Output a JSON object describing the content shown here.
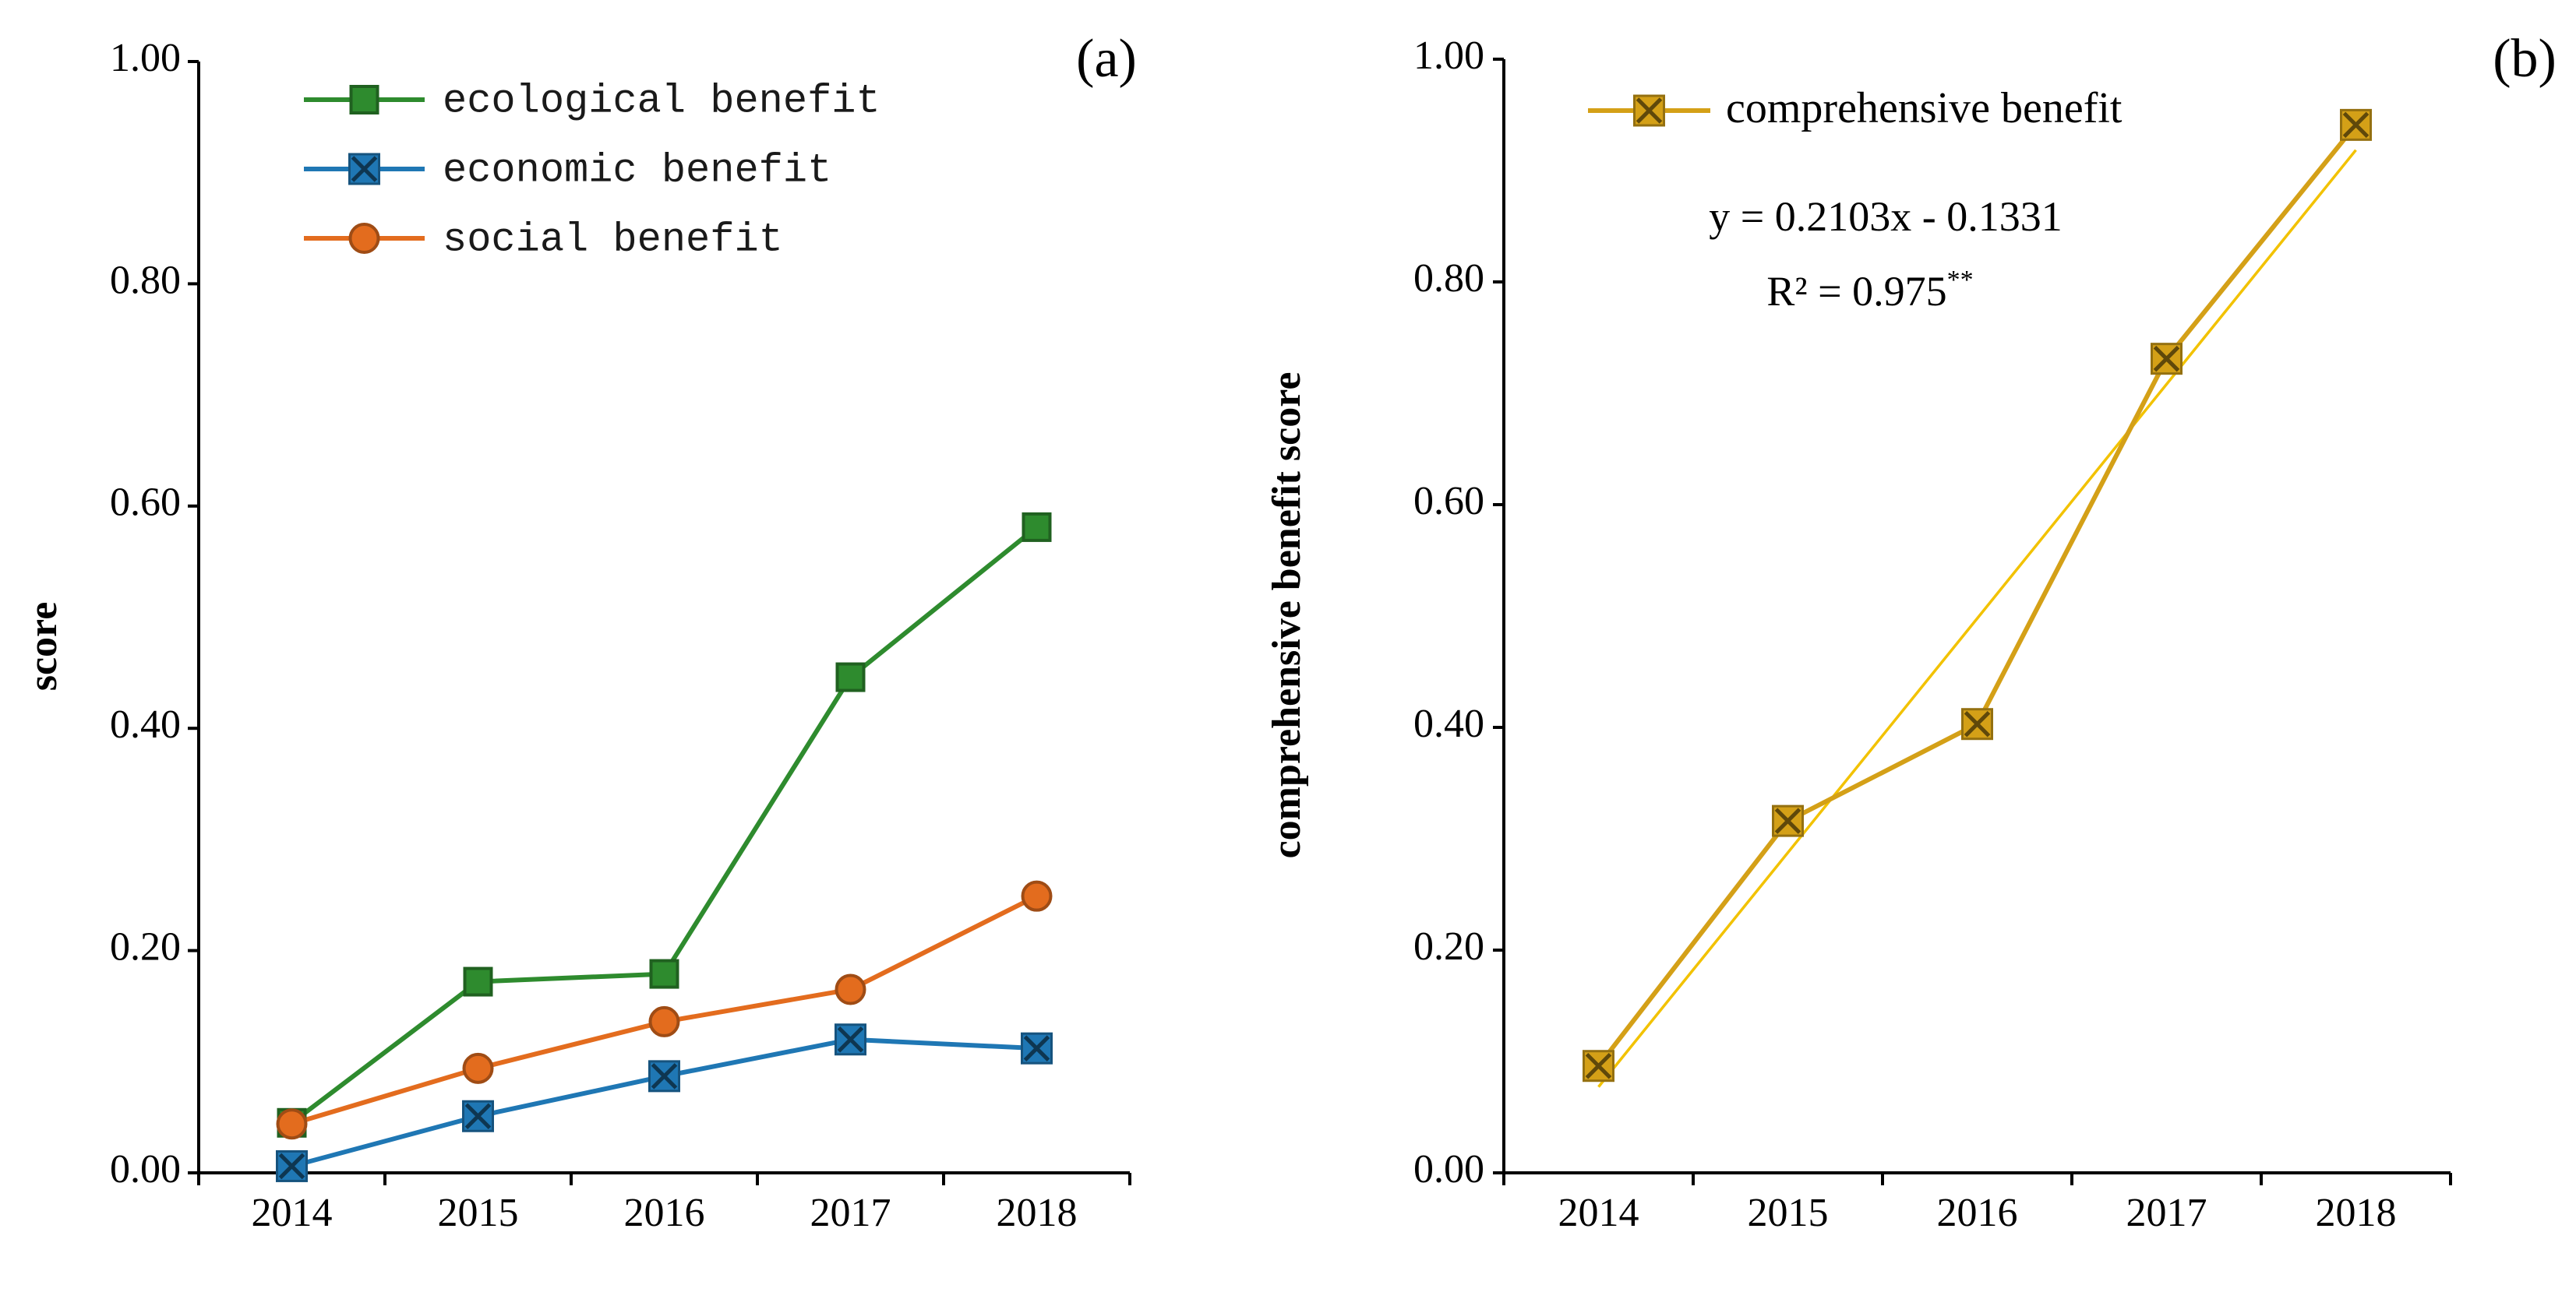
{
  "chart_data": [
    {
      "type": "line",
      "panel_label": "(a)",
      "ylabel": "score",
      "xlabel": "",
      "categories": [
        "2014",
        "2015",
        "2016",
        "2017",
        "2018"
      ],
      "ylim": [
        0,
        1
      ],
      "yticks": [
        "0.00",
        "0.20",
        "0.40",
        "0.60",
        "0.80",
        "1.00"
      ],
      "grid": false,
      "legend": "top-left",
      "series": [
        {
          "name": "ecological benefit",
          "color": "#2e8b2e",
          "marker": "square",
          "values": [
            0.045,
            0.172,
            0.179,
            0.446,
            0.581
          ]
        },
        {
          "name": "economic benefit",
          "color": "#1f77b4",
          "marker": "x-square",
          "values": [
            0.006,
            0.051,
            0.087,
            0.12,
            0.112
          ]
        },
        {
          "name": "social benefit",
          "color": "#e36c1e",
          "marker": "circle",
          "values": [
            0.044,
            0.094,
            0.136,
            0.165,
            0.249
          ]
        }
      ]
    },
    {
      "type": "line",
      "panel_label": "(b)",
      "ylabel": "comprehensive benefit score",
      "xlabel": "",
      "categories": [
        "2014",
        "2015",
        "2016",
        "2017",
        "2018"
      ],
      "ylim": [
        0,
        1
      ],
      "yticks": [
        "0.00",
        "0.20",
        "0.40",
        "0.60",
        "0.80",
        "1.00"
      ],
      "grid": false,
      "legend": "top-left",
      "series": [
        {
          "name": "comprehensive benefit",
          "color": "#d4a017",
          "marker": "x-square",
          "values": [
            0.096,
            0.316,
            0.403,
            0.731,
            0.941
          ]
        }
      ],
      "trendline": {
        "slope": 0.2103,
        "intercept": -0.1331,
        "color": "#f2c200"
      },
      "annotations": {
        "equation": "y = 0.2103x - 0.1331",
        "r2_label": "R² = 0.975",
        "r2_sig": "**"
      }
    }
  ]
}
